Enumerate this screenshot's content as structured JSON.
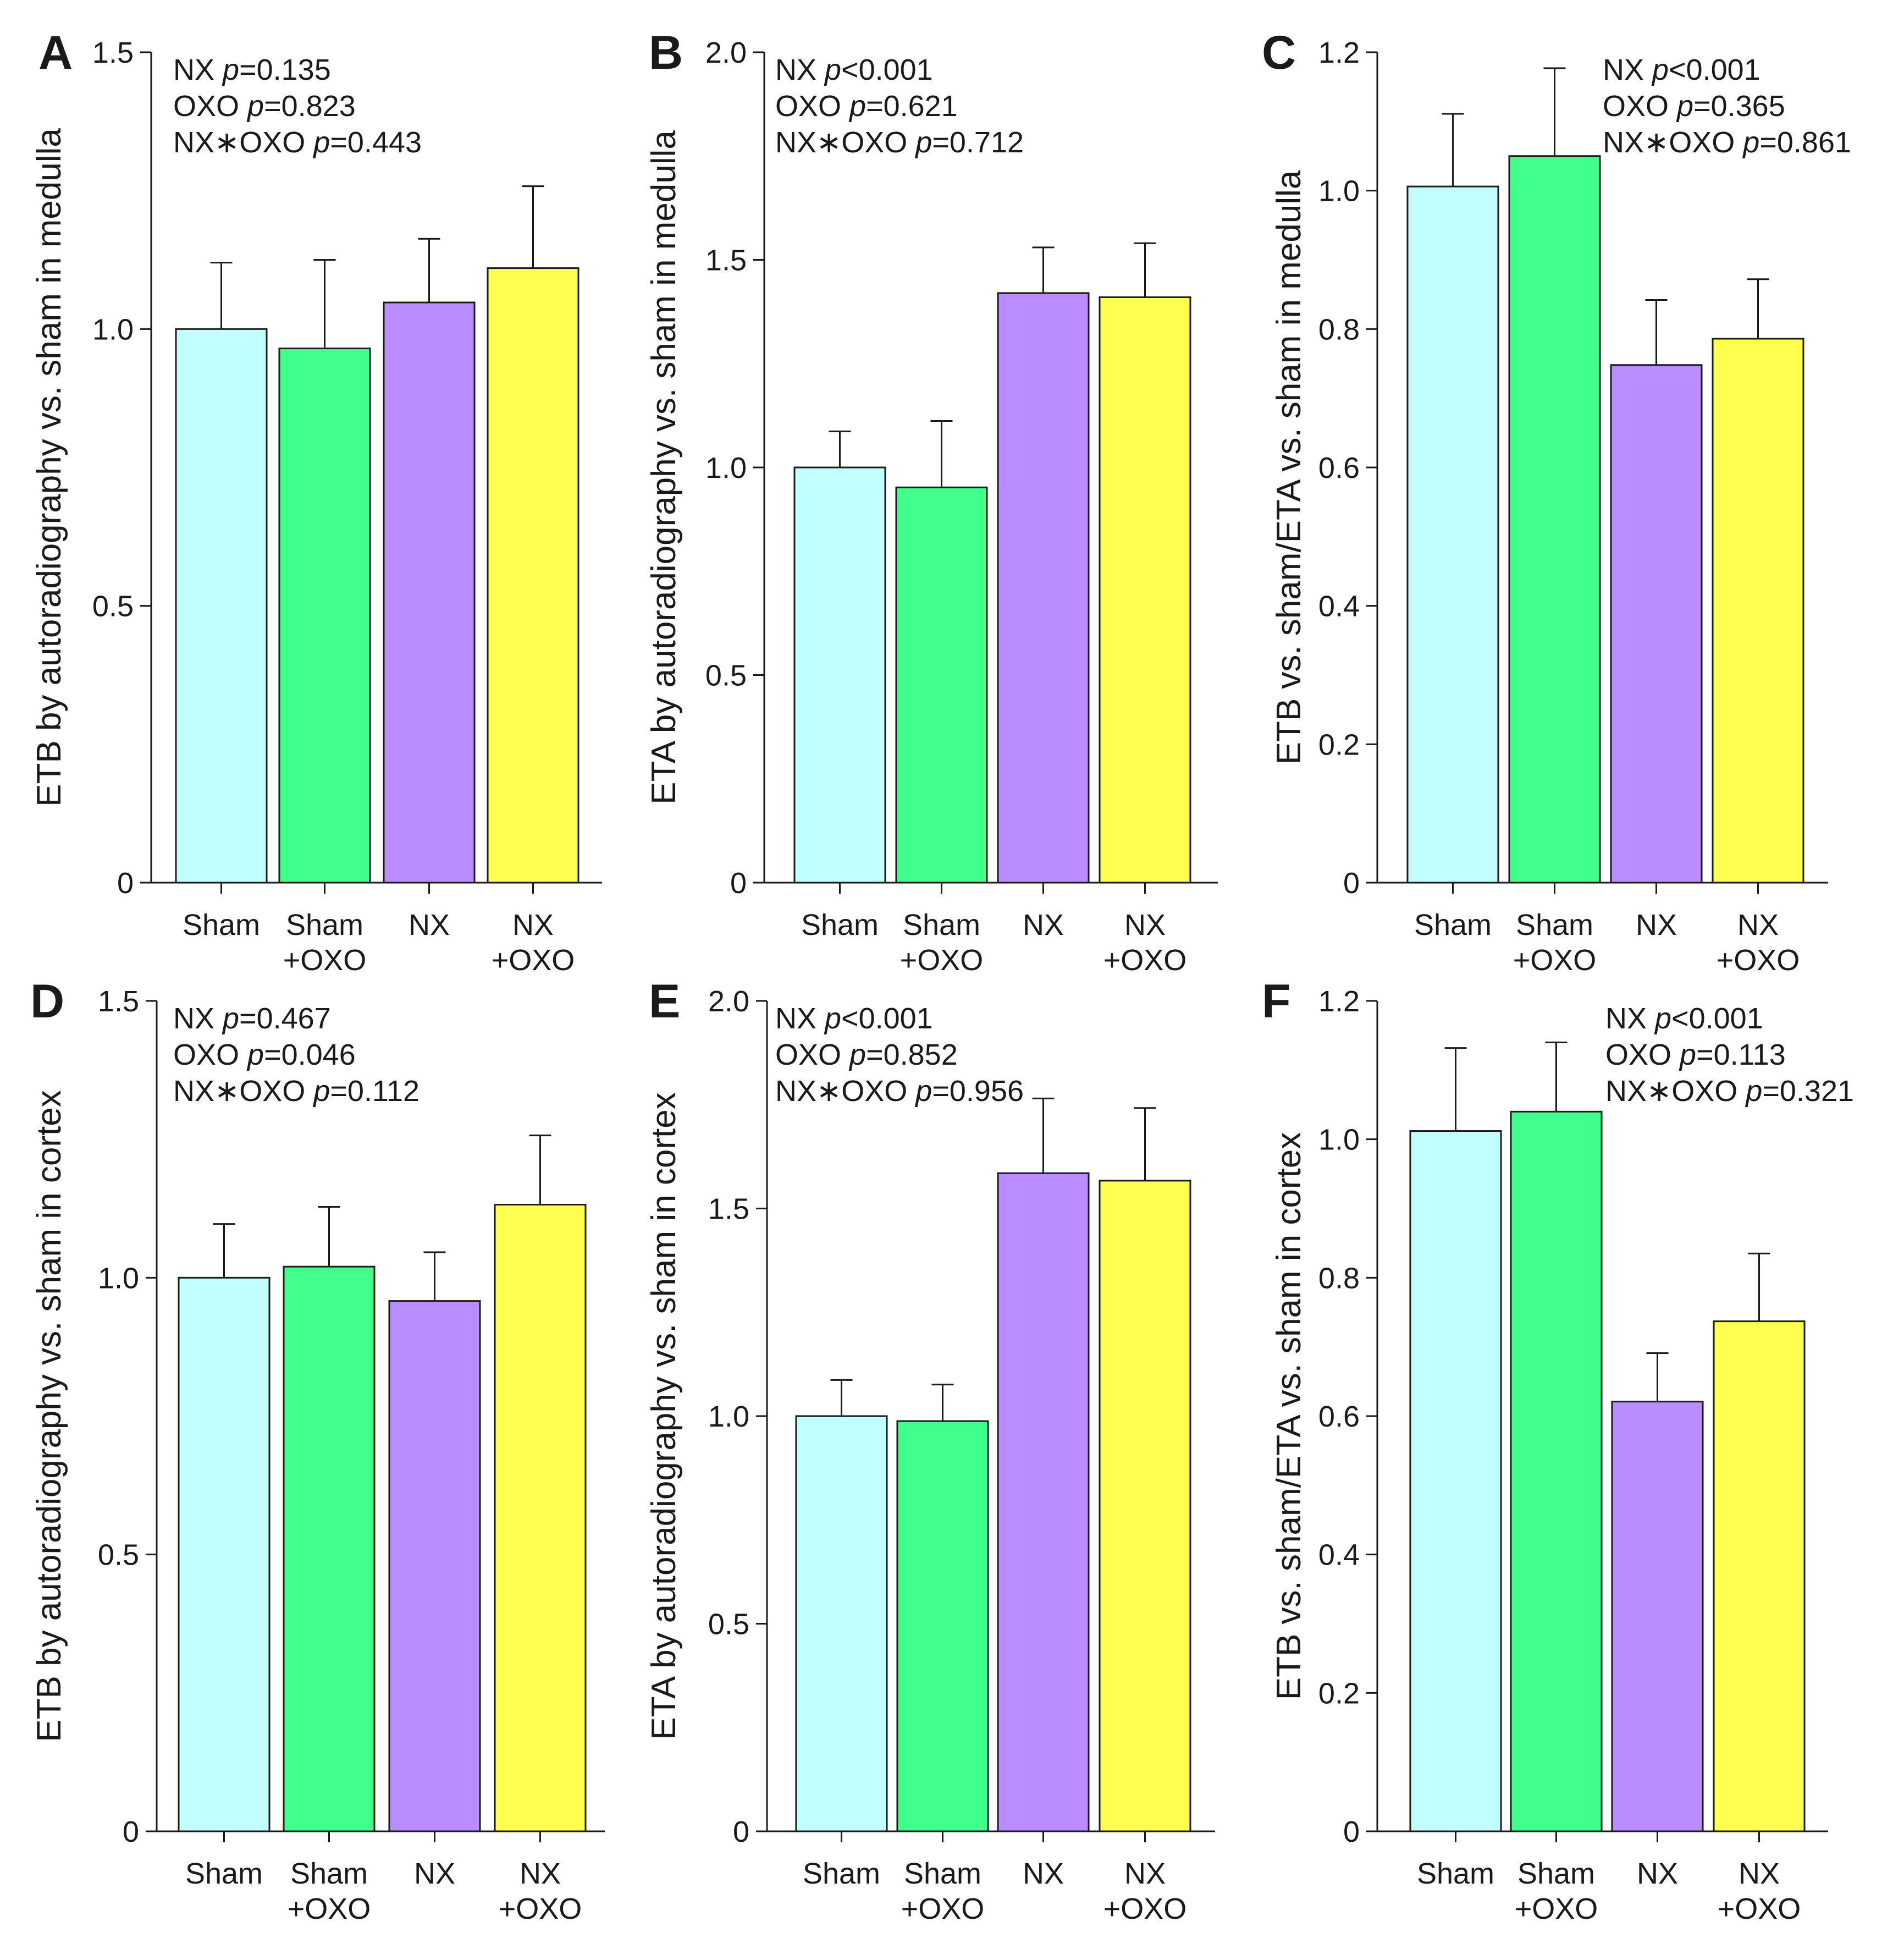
{
  "colors": {
    "sham": "#c2ffff",
    "sham_oxo": "#40ff8c",
    "nx": "#b98cff",
    "nx_oxo": "#ffff50",
    "ink": "#1a1a1a"
  },
  "chart_data": [
    {
      "panel": "A",
      "type": "bar",
      "categories": [
        [
          "Sham"
        ],
        [
          "Sham",
          "+OXO"
        ],
        [
          "NX"
        ],
        [
          "NX",
          "+OXO"
        ]
      ],
      "values": [
        1.0,
        0.965,
        1.048,
        1.11
      ],
      "errors": [
        0.12,
        0.16,
        0.115,
        0.148
      ],
      "ylim": [
        0,
        1.5
      ],
      "yticks": [
        0,
        0.5,
        1.0,
        1.5
      ],
      "ytick_labels": [
        "0",
        "0.5",
        "1.0",
        "1.5"
      ],
      "ylabel": "ETB by autoradiography vs. sham in medulla",
      "stats": [
        {
          "term": "NX",
          "p": "p",
          "value": "=0.135"
        },
        {
          "term": "OXO",
          "p": "p",
          "value": "=0.823"
        },
        {
          "term": "NX∗OXO",
          "p": "p",
          "value": "=0.443"
        }
      ]
    },
    {
      "panel": "B",
      "type": "bar",
      "categories": [
        [
          "Sham"
        ],
        [
          "Sham",
          "+OXO"
        ],
        [
          "NX"
        ],
        [
          "NX",
          "+OXO"
        ]
      ],
      "values": [
        1.0,
        0.952,
        1.42,
        1.41
      ],
      "errors": [
        0.087,
        0.16,
        0.11,
        0.13
      ],
      "ylim": [
        0,
        2.0
      ],
      "yticks": [
        0,
        0.5,
        1.0,
        1.5,
        2.0
      ],
      "ytick_labels": [
        "0",
        "0.5",
        "1.0",
        "1.5",
        "2.0"
      ],
      "ylabel": "ETA by autoradiography vs. sham in medulla",
      "stats": [
        {
          "term": "NX",
          "p": "p",
          "value": "<0.001"
        },
        {
          "term": "OXO",
          "p": "p",
          "value": "=0.621"
        },
        {
          "term": "NX∗OXO",
          "p": "p",
          "value": "=0.712"
        }
      ]
    },
    {
      "panel": "C",
      "type": "bar",
      "categories": [
        [
          "Sham"
        ],
        [
          "Sham",
          "+OXO"
        ],
        [
          "NX"
        ],
        [
          "NX",
          "+OXO"
        ]
      ],
      "values": [
        1.006,
        1.05,
        0.748,
        0.786
      ],
      "errors": [
        0.105,
        0.127,
        0.094,
        0.086
      ],
      "ylim": [
        0,
        1.2
      ],
      "yticks": [
        0,
        0.2,
        0.4,
        0.6,
        0.8,
        1.0,
        1.2
      ],
      "ytick_labels": [
        "0",
        "0.2",
        "0.4",
        "0.6",
        "0.8",
        "1.0",
        "1.2"
      ],
      "ylabel": "ETB vs. sham/ETA vs. sham in medulla",
      "stats": [
        {
          "term": "NX",
          "p": "p",
          "value": "<0.001"
        },
        {
          "term": "OXO",
          "p": "p",
          "value": "=0.365"
        },
        {
          "term": "NX∗OXO",
          "p": "p",
          "value": "=0.861"
        }
      ]
    },
    {
      "panel": "D",
      "type": "bar",
      "categories": [
        [
          "Sham"
        ],
        [
          "Sham",
          "+OXO"
        ],
        [
          "NX"
        ],
        [
          "NX",
          "+OXO"
        ]
      ],
      "values": [
        1.0,
        1.02,
        0.958,
        1.132
      ],
      "errors": [
        0.097,
        0.108,
        0.088,
        0.125
      ],
      "ylim": [
        0,
        1.5
      ],
      "yticks": [
        0,
        0.5,
        1.0,
        1.5
      ],
      "ytick_labels": [
        "0",
        "0.5",
        "1.0",
        "1.5"
      ],
      "ylabel": "ETB by autoradiography vs. sham in cortex",
      "stats": [
        {
          "term": "NX",
          "p": "p",
          "value": "=0.467"
        },
        {
          "term": "OXO",
          "p": "p",
          "value": "=0.046"
        },
        {
          "term": "NX∗OXO",
          "p": "p",
          "value": "=0.112"
        }
      ]
    },
    {
      "panel": "E",
      "type": "bar",
      "categories": [
        [
          "Sham"
        ],
        [
          "Sham",
          "+OXO"
        ],
        [
          "NX"
        ],
        [
          "NX",
          "+OXO"
        ]
      ],
      "values": [
        1.0,
        0.988,
        1.585,
        1.567
      ],
      "errors": [
        0.087,
        0.088,
        0.18,
        0.175
      ],
      "ylim": [
        0,
        2.0
      ],
      "yticks": [
        0,
        0.5,
        1.0,
        1.5,
        2.0
      ],
      "ytick_labels": [
        "0",
        "0.5",
        "1.0",
        "1.5",
        "2.0"
      ],
      "ylabel": "ETA by autoradiography vs. sham in cortex",
      "stats": [
        {
          "term": "NX",
          "p": "p",
          "value": "<0.001"
        },
        {
          "term": "OXO",
          "p": "p",
          "value": "=0.852"
        },
        {
          "term": "NX∗OXO",
          "p": "p",
          "value": "=0.956"
        }
      ]
    },
    {
      "panel": "F",
      "type": "bar",
      "categories": [
        [
          "Sham"
        ],
        [
          "Sham",
          "+OXO"
        ],
        [
          "NX"
        ],
        [
          "NX",
          "+OXO"
        ]
      ],
      "values": [
        1.012,
        1.04,
        0.621,
        0.737
      ],
      "errors": [
        0.12,
        0.1,
        0.07,
        0.098
      ],
      "ylim": [
        0,
        1.2
      ],
      "yticks": [
        0,
        0.2,
        0.4,
        0.6,
        0.8,
        1.0,
        1.2
      ],
      "ytick_labels": [
        "0",
        "0.2",
        "0.4",
        "0.6",
        "0.8",
        "1.0",
        "1.2"
      ],
      "ylabel": "ETB vs. sham/ETA vs. sham in cortex",
      "stats": [
        {
          "term": "NX",
          "p": "p",
          "value": "<0.001"
        },
        {
          "term": "OXO",
          "p": "p",
          "value": "=0.113"
        },
        {
          "term": "NX∗OXO",
          "p": "p",
          "value": "=0.321"
        }
      ]
    }
  ]
}
